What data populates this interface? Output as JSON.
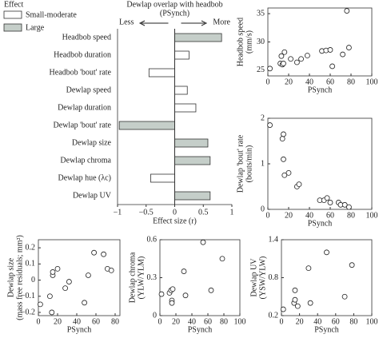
{
  "chart_data": [
    {
      "type": "bar",
      "orientation": "horizontal",
      "title": "Dewlap overlap with headbob",
      "subtitle": "(PSynch)",
      "annotations": [
        "Less",
        "More"
      ],
      "legend_title": "Effect",
      "xlabel": "Effect size (r)",
      "categories": [
        "Headbob speed",
        "Headbob duration",
        "Headbob 'bout' rate",
        "Dewlap speed",
        "Dewlap duration",
        "Dewlap 'bout' rate",
        "Dewlap size",
        "Dewlap chroma",
        "Dewlap hue (λc)",
        "Dewlap UV"
      ],
      "series": [
        {
          "name": "Small-moderate",
          "color": "#ffffff",
          "values": [
            null,
            0.25,
            -0.45,
            0.22,
            0.37,
            null,
            null,
            null,
            -0.42,
            null
          ]
        },
        {
          "name": "Large",
          "color": "#c5cec9",
          "values": [
            0.82,
            null,
            null,
            null,
            null,
            -0.97,
            0.58,
            0.62,
            null,
            0.62
          ]
        }
      ],
      "xlim": [
        -1,
        1
      ],
      "xticks": [
        {
          "value": -1,
          "label": "−1"
        },
        {
          "value": -0.5,
          "label": "−0.5"
        },
        0,
        0.5,
        1
      ]
    },
    {
      "type": "scatter",
      "xlabel": "PSynch",
      "ylabel": [
        "Headbob speed",
        "(mm/s)"
      ],
      "x": [
        2,
        12,
        13,
        14,
        15,
        16,
        22,
        28,
        32,
        38,
        52,
        56,
        60,
        62,
        72,
        76,
        78
      ],
      "values": [
        25.3,
        26.2,
        27.5,
        26.0,
        26.2,
        28.2,
        27.0,
        26.4,
        27.0,
        27.6,
        28.4,
        28.5,
        28.6,
        25.7,
        27.8,
        35.5,
        29.0
      ],
      "xlim": [
        0,
        100
      ],
      "xticks": [
        0,
        20,
        40,
        60,
        80,
        100
      ],
      "ylim": [
        24,
        36
      ],
      "yticks": [
        25,
        30,
        35
      ]
    },
    {
      "type": "scatter",
      "xlabel": "PSynch",
      "ylabel": [
        "Dewlap 'bout' rate",
        "(bouts/min)"
      ],
      "x": [
        2,
        14,
        15,
        16,
        15,
        20,
        28,
        30,
        50,
        54,
        57,
        60,
        68,
        70,
        74,
        78
      ],
      "values": [
        1.85,
        1.55,
        1.65,
        0.75,
        1.1,
        0.8,
        0.5,
        0.55,
        0.2,
        0.2,
        0.25,
        0.15,
        0.15,
        0.1,
        0.1,
        0.05
      ],
      "xlim": [
        0,
        100
      ],
      "xticks": [
        0,
        20,
        40,
        60,
        80,
        100
      ],
      "ylim": [
        0,
        2
      ],
      "yticks": [
        0,
        1,
        2
      ]
    },
    {
      "type": "scatter",
      "xlabel": "PSynch",
      "ylabel": [
        "Dewlap size",
        "(mass free residuals; mm²)"
      ],
      "x": [
        2,
        12,
        14,
        15,
        15,
        20,
        28,
        32,
        48,
        52,
        58,
        68,
        72,
        76
      ],
      "values": [
        -0.15,
        -0.1,
        -0.2,
        0.03,
        0.05,
        0.07,
        -0.05,
        -0.01,
        -0.14,
        0.03,
        0.17,
        0.16,
        0.07,
        0.06
      ],
      "xlim": [
        0,
        85
      ],
      "xticks": [
        0,
        20,
        40,
        60,
        80
      ],
      "ylim": [
        -0.22,
        0.25
      ],
      "yticks": [
        {
          "value": -0.2,
          "label": "−0.2"
        },
        {
          "value": -0.1,
          "label": "−0.1"
        },
        0,
        0.1,
        0.2
      ]
    },
    {
      "type": "scatter",
      "xlabel": "PSynch",
      "ylabel": [
        "Dewlap chroma",
        "(YLW/YLM)"
      ],
      "x": [
        2,
        12,
        14,
        15,
        15,
        16,
        30,
        32,
        54,
        64,
        78
      ],
      "values": [
        0.17,
        0.18,
        0.2,
        0.12,
        0.1,
        0.21,
        0.35,
        0.16,
        0.58,
        0.2,
        0.45
      ],
      "xlim": [
        0,
        100
      ],
      "xticks": [
        0,
        20,
        40,
        60,
        80,
        100
      ],
      "ylim": [
        0,
        0.6
      ],
      "yticks": [
        0,
        0.3,
        0.6
      ]
    },
    {
      "type": "scatter",
      "xlabel": "PSynch",
      "ylabel": [
        "Dewlap UV",
        "(YSW/YLW)"
      ],
      "x": [
        2,
        14,
        15,
        15,
        18,
        30,
        32,
        50,
        70,
        78
      ],
      "values": [
        0.3,
        0.4,
        0.45,
        0.6,
        0.35,
        0.95,
        0.4,
        1.2,
        0.5,
        1.0
      ],
      "xlim": [
        0,
        100
      ],
      "xticks": [
        0,
        20,
        40,
        60,
        80,
        100
      ],
      "ylim": [
        0.2,
        1.4
      ],
      "yticks": [
        0.2,
        0.8,
        1.4
      ]
    }
  ]
}
